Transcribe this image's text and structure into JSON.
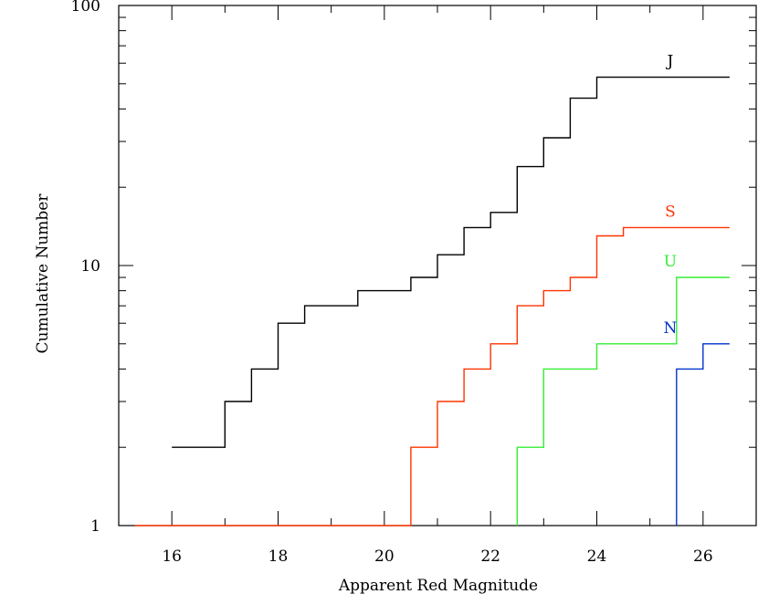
{
  "chart_data": {
    "type": "line",
    "xlabel": "Apparent Red Magnitude",
    "ylabel": "Cumulative Number",
    "xlim": [
      15,
      27
    ],
    "ylim": [
      1,
      100
    ],
    "yscale": "log",
    "grid": false,
    "x_ticks": [
      16,
      18,
      20,
      22,
      24,
      26
    ],
    "x_tick_labels": [
      "16",
      "18",
      "20",
      "22",
      "24",
      "26"
    ],
    "y_ticks": [
      1,
      10,
      100
    ],
    "y_tick_labels": [
      "1",
      "10",
      "100"
    ],
    "series": [
      {
        "name": "J",
        "color": "#000000",
        "line_style": "step-post",
        "x": [
          16,
          17,
          17.5,
          18,
          18.5,
          19.5,
          20.5,
          21,
          21.5,
          22,
          22.5,
          23,
          23.5,
          24,
          26.5
        ],
        "values": [
          2,
          3,
          4,
          6,
          7,
          8,
          9,
          11,
          14,
          16,
          24,
          31,
          44,
          53,
          53
        ]
      },
      {
        "name": "S",
        "color": "#ff3300",
        "line_style": "step-post",
        "x": [
          15.3,
          20.5,
          21,
          21.5,
          22,
          22.5,
          23,
          23.5,
          24,
          24.5,
          26.5
        ],
        "values": [
          1,
          2,
          3,
          4,
          5,
          7,
          8,
          9,
          13,
          14,
          14
        ]
      },
      {
        "name": "U",
        "color": "#33ee33",
        "line_style": "step-post",
        "x": [
          22.5,
          23,
          24,
          25.5,
          26.5
        ],
        "values": [
          2,
          4,
          5,
          9,
          9
        ]
      },
      {
        "name": "N",
        "color": "#0033cc",
        "line_style": "step-post",
        "x": [
          25.5,
          26,
          26.5
        ],
        "values": [
          4,
          5,
          5
        ]
      }
    ]
  }
}
